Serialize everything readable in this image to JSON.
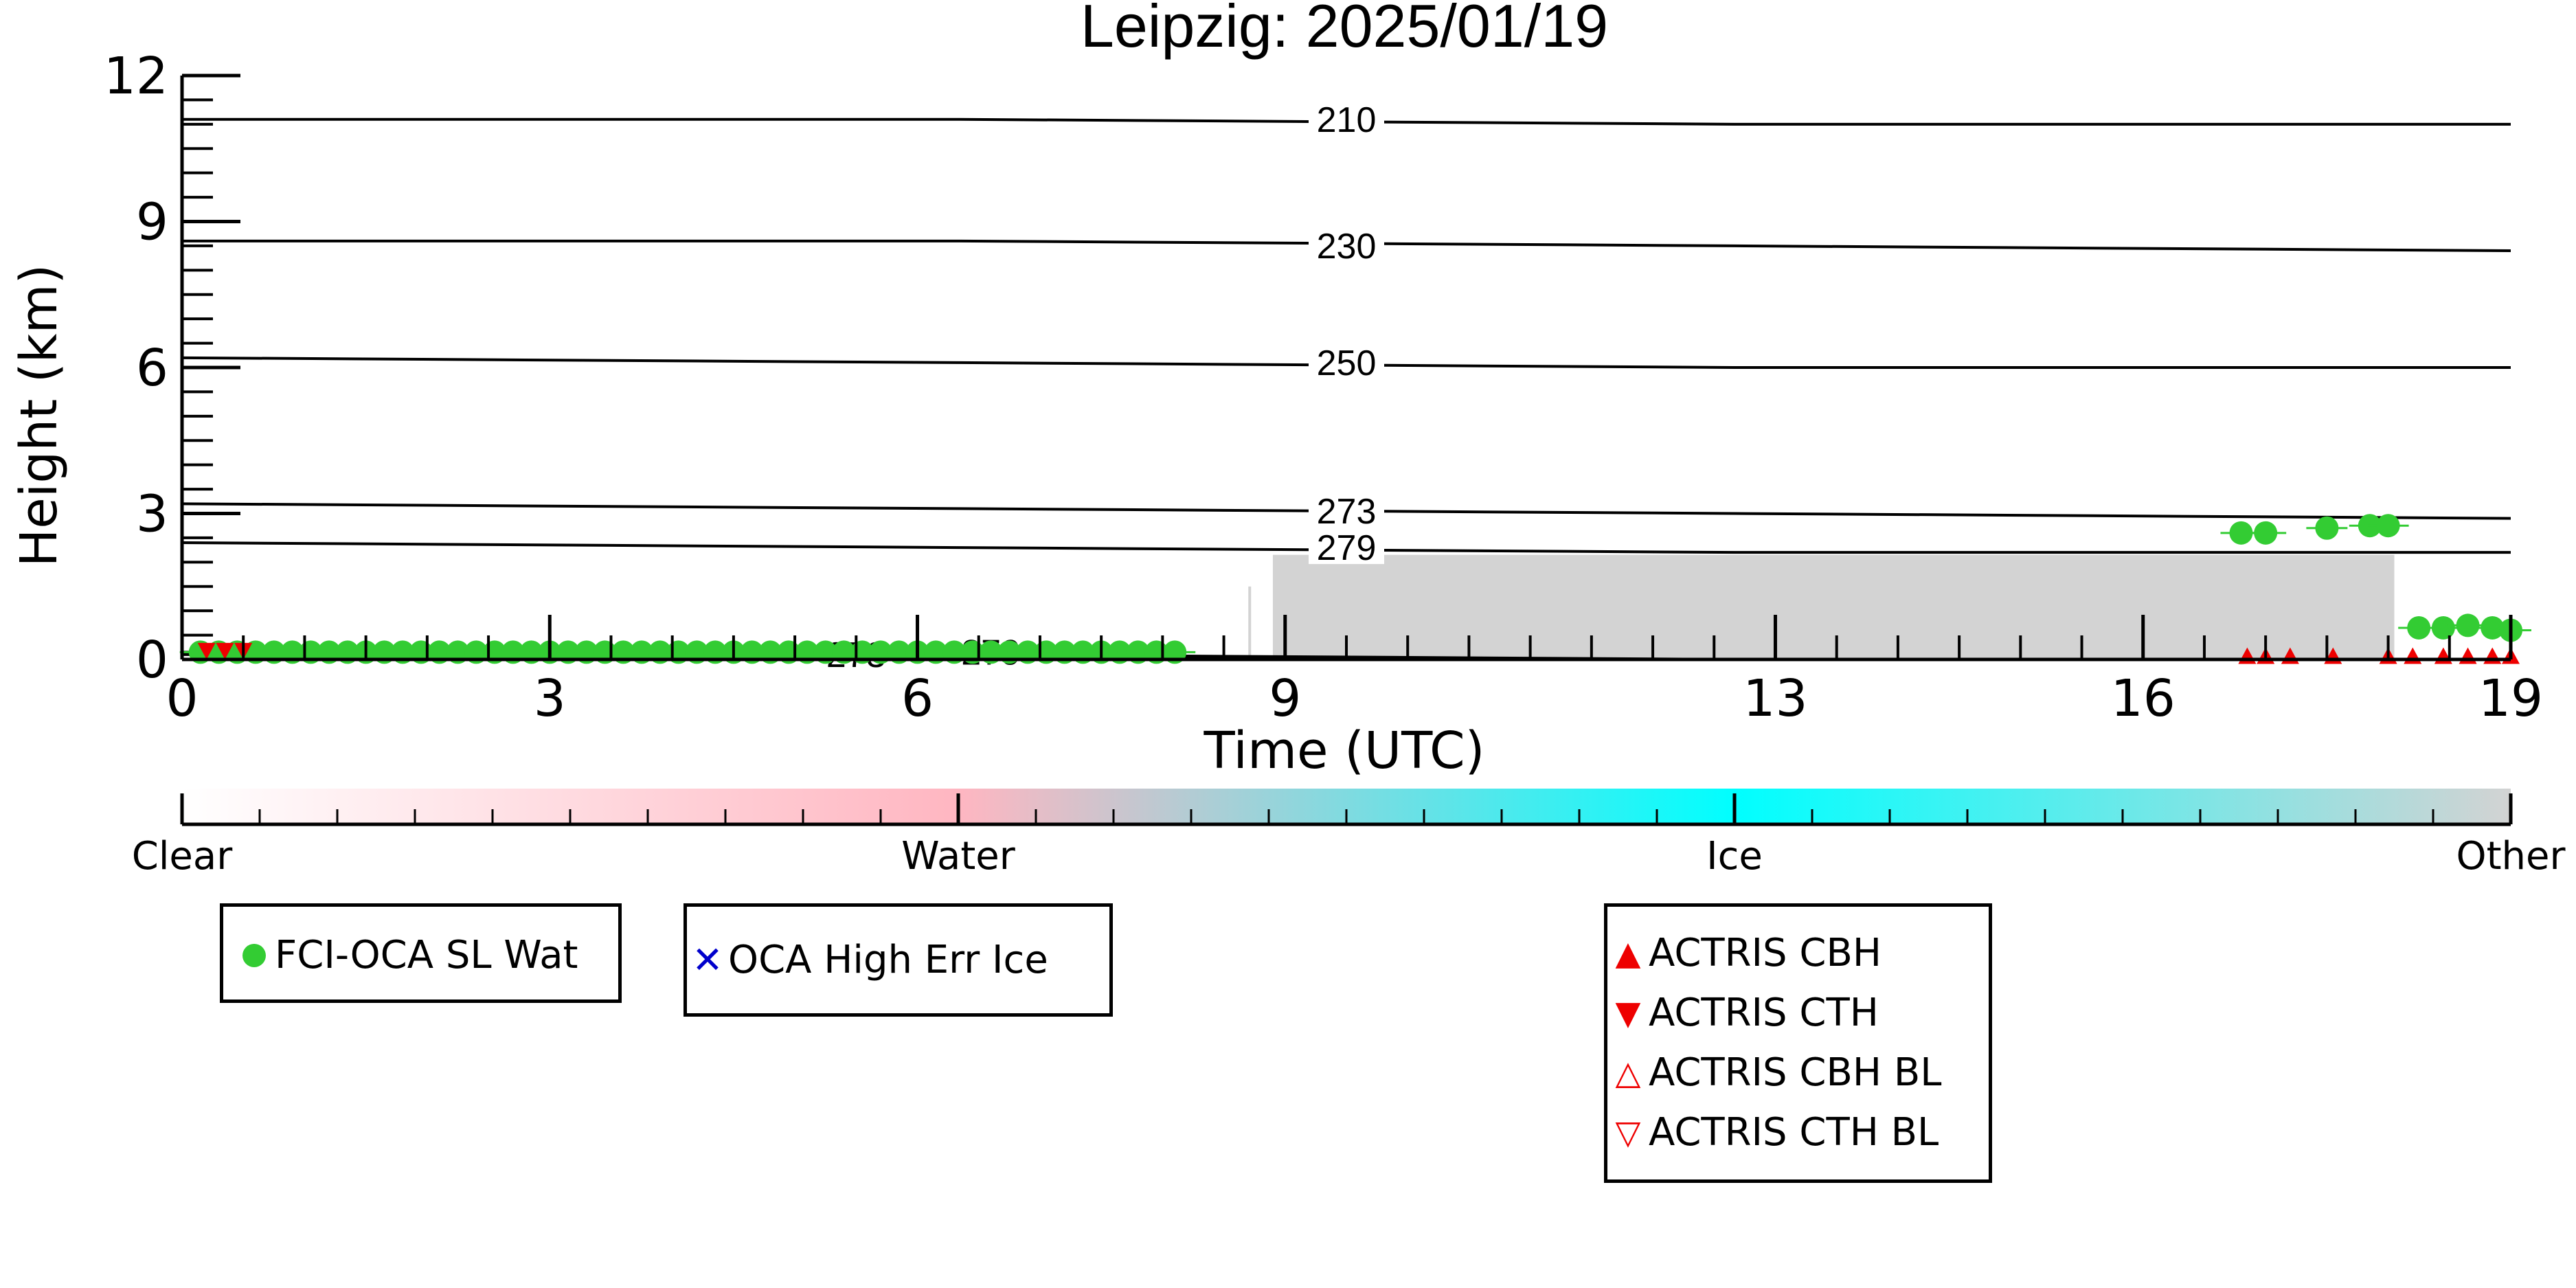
{
  "chart_data": {
    "type": "scatter",
    "title": "Leipzig: 2025/01/19",
    "xlabel": "Time (UTC)",
    "ylabel": "Height (km)",
    "xlim": [
      0,
      19
    ],
    "ylim": [
      0,
      12
    ],
    "xticks": [
      0,
      3,
      6,
      9,
      13,
      16,
      19
    ],
    "xtick_labels": [
      "0",
      "3",
      "6",
      "9",
      "13",
      "16",
      "19"
    ],
    "yticks": [
      0,
      3,
      6,
      9,
      12
    ],
    "ytick_labels": [
      "0",
      "3",
      "6",
      "9",
      "12"
    ],
    "contours": [
      {
        "label": "210",
        "heights": [
          11.1,
          11.1,
          11.0,
          11.0
        ]
      },
      {
        "label": "230",
        "heights": [
          8.6,
          8.6,
          8.5,
          8.4
        ]
      },
      {
        "label": "250",
        "heights": [
          6.2,
          6.1,
          6.0,
          6.0
        ]
      },
      {
        "label": "273",
        "heights": [
          3.2,
          3.1,
          3.0,
          2.9
        ]
      },
      {
        "label": "279",
        "heights": [
          2.4,
          2.3,
          2.2,
          2.2
        ]
      },
      {
        "label": "273",
        "heights": [
          0.15,
          0.1,
          0.0,
          0.0
        ]
      },
      {
        "label": "279",
        "heights": [
          0.1,
          0.05,
          0.0,
          0.0
        ]
      }
    ],
    "contour_label_positions": [
      {
        "label": "210",
        "x": 9.5,
        "y": 11.1
      },
      {
        "label": "230",
        "x": 9.5,
        "y": 8.5
      },
      {
        "label": "250",
        "x": 9.5,
        "y": 6.1
      },
      {
        "label": "273",
        "x": 9.5,
        "y": 3.05
      },
      {
        "label": "279",
        "x": 9.5,
        "y": 2.3
      },
      {
        "label": "273",
        "x": 5.5,
        "y": 0.1
      },
      {
        "label": "279",
        "x": 6.6,
        "y": 0.15
      }
    ],
    "colorbar": {
      "labels": [
        "Clear",
        "Water",
        "Ice",
        "Other"
      ],
      "colors": [
        "#ffffff",
        "#ffb6c1",
        "#00ffff",
        "#d3d3d3"
      ]
    },
    "series": [
      {
        "name": "FCI-OCA SL Wat",
        "marker": "circle",
        "color": "#33cc33",
        "x": [
          0.15,
          0.3,
          0.45,
          0.6,
          0.75,
          0.9,
          1.05,
          1.2,
          1.35,
          1.5,
          1.65,
          1.8,
          1.95,
          2.1,
          2.25,
          2.4,
          2.55,
          2.7,
          2.85,
          3.0,
          3.15,
          3.3,
          3.45,
          3.6,
          3.75,
          3.9,
          4.05,
          4.2,
          4.35,
          4.5,
          4.65,
          4.8,
          4.95,
          5.1,
          5.25,
          5.4,
          5.55,
          5.7,
          5.85,
          6.0,
          6.15,
          6.3,
          6.45,
          6.6,
          6.75,
          6.9,
          7.05,
          7.2,
          7.35,
          7.5,
          7.65,
          7.8,
          7.95,
          8.1,
          16.8,
          17.0,
          17.5,
          17.85,
          18.0,
          18.25,
          18.45,
          18.65,
          18.85,
          19.0
        ],
        "y": [
          0.15,
          0.15,
          0.15,
          0.15,
          0.15,
          0.15,
          0.15,
          0.15,
          0.15,
          0.15,
          0.15,
          0.15,
          0.15,
          0.15,
          0.15,
          0.15,
          0.15,
          0.15,
          0.15,
          0.15,
          0.15,
          0.15,
          0.15,
          0.15,
          0.15,
          0.15,
          0.15,
          0.15,
          0.15,
          0.15,
          0.15,
          0.15,
          0.15,
          0.15,
          0.15,
          0.15,
          0.15,
          0.15,
          0.15,
          0.15,
          0.15,
          0.15,
          0.15,
          0.15,
          0.15,
          0.15,
          0.15,
          0.15,
          0.15,
          0.15,
          0.15,
          0.15,
          0.15,
          0.15,
          2.6,
          2.6,
          2.7,
          2.75,
          2.75,
          0.65,
          0.65,
          0.7,
          0.65,
          0.6
        ]
      },
      {
        "name": "OCA High Err Ice",
        "marker": "x",
        "color": "#0000cc",
        "x": [],
        "y": []
      },
      {
        "name": "ACTRIS CBH",
        "marker": "triangle-up",
        "color": "#ee0000",
        "x": [
          16.85,
          17.0,
          17.2,
          17.55,
          18.0,
          18.2,
          18.45,
          18.65,
          18.85,
          19.0
        ],
        "y": [
          0.05,
          0.05,
          0.05,
          0.05,
          0.05,
          0.05,
          0.05,
          0.05,
          0.05,
          0.05
        ]
      },
      {
        "name": "ACTRIS CTH",
        "marker": "triangle-down",
        "color": "#ee0000",
        "x": [
          0.2,
          0.35,
          0.5
        ],
        "y": [
          0.2,
          0.2,
          0.2
        ]
      },
      {
        "name": "ACTRIS CBH BL",
        "marker": "triangle-up-open",
        "color": "#ee0000",
        "x": [],
        "y": []
      },
      {
        "name": "ACTRIS CTH BL",
        "marker": "triangle-down-open",
        "color": "#ee0000",
        "x": [],
        "y": []
      }
    ],
    "other_region": {
      "x_start": 8.9,
      "x_end": 18.05,
      "y_top_left": 1.75,
      "y_top_right": 2.15,
      "color": "#d3d3d3"
    },
    "grid": false,
    "legend_placement": "below"
  }
}
